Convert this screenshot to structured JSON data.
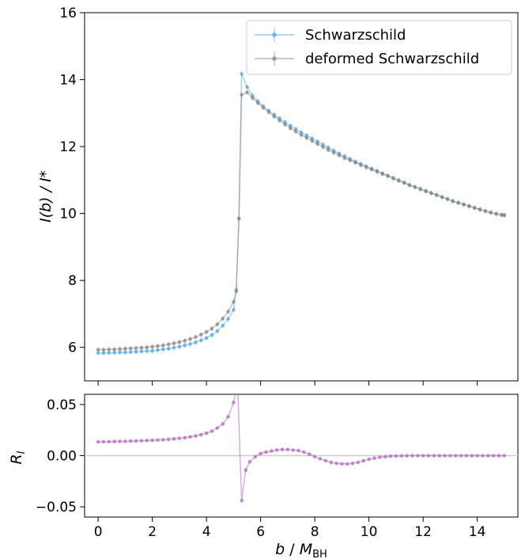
{
  "chart_data": [
    {
      "type": "line",
      "xlabel": "",
      "ylabel": "I(b) / I*",
      "xlim": [
        -0.5,
        15.5
      ],
      "ylim": [
        5,
        16
      ],
      "yticks": [
        6,
        8,
        10,
        12,
        14,
        16
      ],
      "xticks": [
        0,
        2,
        4,
        6,
        8,
        10,
        12,
        14
      ],
      "grid": false,
      "legend_position": "top-right",
      "series": [
        {
          "name": "Schwarzschild",
          "color": "#5aa8de",
          "marker": "dot-with-errorbar",
          "x": [
            0,
            0.2,
            0.4,
            0.6,
            0.8,
            1.0,
            1.2,
            1.4,
            1.6,
            1.8,
            2.0,
            2.2,
            2.4,
            2.6,
            2.8,
            3.0,
            3.2,
            3.4,
            3.6,
            3.8,
            4.0,
            4.2,
            4.4,
            4.6,
            4.8,
            5.0,
            5.1,
            5.2,
            5.3,
            5.5,
            5.7,
            5.9,
            6.1,
            6.3,
            6.5,
            6.7,
            6.9,
            7.1,
            7.3,
            7.5,
            7.7,
            7.9,
            8.1,
            8.3,
            8.5,
            8.7,
            8.9,
            9.1,
            9.3,
            9.5,
            9.7,
            9.9,
            10.1,
            10.3,
            10.5,
            10.7,
            10.9,
            11.1,
            11.3,
            11.5,
            11.7,
            11.9,
            12.1,
            12.3,
            12.5,
            12.7,
            12.9,
            13.1,
            13.3,
            13.5,
            13.7,
            13.9,
            14.1,
            14.3,
            14.5,
            14.7,
            14.9,
            15.0
          ],
          "y": [
            5.83,
            5.83,
            5.84,
            5.84,
            5.85,
            5.85,
            5.86,
            5.87,
            5.88,
            5.89,
            5.9,
            5.92,
            5.94,
            5.96,
            5.99,
            6.02,
            6.06,
            6.1,
            6.15,
            6.21,
            6.28,
            6.37,
            6.49,
            6.65,
            6.85,
            7.12,
            7.72,
            9.85,
            14.17,
            13.78,
            13.52,
            13.35,
            13.2,
            13.07,
            12.95,
            12.84,
            12.73,
            12.62,
            12.52,
            12.42,
            12.33,
            12.24,
            12.15,
            12.06,
            11.97,
            11.88,
            11.79,
            11.71,
            11.63,
            11.55,
            11.48,
            11.41,
            11.34,
            11.27,
            11.2,
            11.13,
            11.06,
            10.99,
            10.92,
            10.85,
            10.79,
            10.73,
            10.67,
            10.61,
            10.55,
            10.49,
            10.43,
            10.37,
            10.32,
            10.27,
            10.22,
            10.17,
            10.12,
            10.07,
            10.03,
            9.99,
            9.96,
            9.95
          ]
        },
        {
          "name": "deformed Schwarzschild",
          "color": "#8a8a8a",
          "marker": "dot-with-errorbar",
          "x": [
            0,
            0.2,
            0.4,
            0.6,
            0.8,
            1.0,
            1.2,
            1.4,
            1.6,
            1.8,
            2.0,
            2.2,
            2.4,
            2.6,
            2.8,
            3.0,
            3.2,
            3.4,
            3.6,
            3.8,
            4.0,
            4.2,
            4.4,
            4.6,
            4.8,
            5.0,
            5.1,
            5.2,
            5.3,
            5.5,
            5.7,
            5.9,
            6.1,
            6.3,
            6.5,
            6.7,
            6.9,
            7.1,
            7.3,
            7.5,
            7.7,
            7.9,
            8.1,
            8.3,
            8.5,
            8.7,
            8.9,
            9.1,
            9.3,
            9.5,
            9.7,
            9.9,
            10.1,
            10.3,
            10.5,
            10.7,
            10.9,
            11.1,
            11.3,
            11.5,
            11.7,
            11.9,
            12.1,
            12.3,
            12.5,
            12.7,
            12.9,
            13.1,
            13.3,
            13.5,
            13.7,
            13.9,
            14.1,
            14.3,
            14.5,
            14.7,
            14.9,
            15.0
          ],
          "y": [
            5.93,
            5.93,
            5.94,
            5.94,
            5.95,
            5.96,
            5.97,
            5.98,
            5.99,
            6.0,
            6.02,
            6.04,
            6.06,
            6.09,
            6.12,
            6.16,
            6.2,
            6.25,
            6.31,
            6.38,
            6.46,
            6.56,
            6.69,
            6.86,
            7.07,
            7.36,
            7.68,
            9.85,
            13.55,
            13.62,
            13.45,
            13.3,
            13.16,
            13.03,
            12.9,
            12.78,
            12.66,
            12.55,
            12.45,
            12.35,
            12.26,
            12.17,
            12.08,
            11.99,
            11.9,
            11.82,
            11.74,
            11.66,
            11.59,
            11.52,
            11.45,
            11.38,
            11.32,
            11.25,
            11.18,
            11.12,
            11.05,
            10.98,
            10.92,
            10.85,
            10.79,
            10.73,
            10.67,
            10.61,
            10.55,
            10.49,
            10.43,
            10.37,
            10.32,
            10.27,
            10.22,
            10.17,
            10.12,
            10.07,
            10.03,
            9.99,
            9.96,
            9.95
          ]
        }
      ]
    },
    {
      "type": "line",
      "xlabel": "b / M_BH",
      "ylabel": "R_I",
      "xlim": [
        -0.5,
        15.5
      ],
      "ylim": [
        -0.06,
        0.06
      ],
      "yticks": [
        -0.05,
        0.0,
        0.05
      ],
      "xticks": [
        0,
        2,
        4,
        6,
        8,
        10,
        12,
        14
      ],
      "reference_line_y": 0,
      "grid": false,
      "series": [
        {
          "name": "",
          "color": "#b56fc2",
          "marker": "dot",
          "x": [
            0,
            0.2,
            0.4,
            0.6,
            0.8,
            1.0,
            1.2,
            1.4,
            1.6,
            1.8,
            2.0,
            2.2,
            2.4,
            2.6,
            2.8,
            3.0,
            3.2,
            3.4,
            3.6,
            3.8,
            4.0,
            4.2,
            4.4,
            4.6,
            4.8,
            5.0,
            5.15,
            5.3,
            5.45,
            5.6,
            5.8,
            6.0,
            6.2,
            6.4,
            6.6,
            6.8,
            7.0,
            7.2,
            7.4,
            7.6,
            7.8,
            8.0,
            8.2,
            8.4,
            8.6,
            8.8,
            9.0,
            9.2,
            9.4,
            9.6,
            9.8,
            10.0,
            10.2,
            10.4,
            10.6,
            10.8,
            11.0,
            11.2,
            11.4,
            11.6,
            11.8,
            12.0,
            12.2,
            12.4,
            12.6,
            12.8,
            13.0,
            13.2,
            13.4,
            13.6,
            13.8,
            14.0,
            14.2,
            14.4,
            14.6,
            14.8,
            15.0
          ],
          "y": [
            0.0135,
            0.0136,
            0.0137,
            0.0138,
            0.0139,
            0.014,
            0.0142,
            0.0144,
            0.0146,
            0.0148,
            0.015,
            0.0153,
            0.0156,
            0.016,
            0.0165,
            0.017,
            0.0176,
            0.0184,
            0.0193,
            0.0205,
            0.022,
            0.024,
            0.027,
            0.031,
            0.038,
            0.052,
            0.07,
            -0.044,
            -0.014,
            -0.006,
            -0.001,
            0.002,
            0.0035,
            0.0045,
            0.0055,
            0.006,
            0.006,
            0.0055,
            0.005,
            0.0035,
            0.0015,
            -0.001,
            -0.003,
            -0.005,
            -0.0065,
            -0.0075,
            -0.008,
            -0.008,
            -0.0075,
            -0.0065,
            -0.005,
            -0.0035,
            -0.0025,
            -0.0015,
            -0.001,
            -0.0005,
            -0.0003,
            -0.0002,
            -0.0001,
            0,
            0,
            0,
            0,
            0,
            0,
            0,
            0,
            0,
            0,
            0,
            0,
            0,
            0,
            0,
            0,
            0,
            0
          ]
        }
      ]
    }
  ]
}
